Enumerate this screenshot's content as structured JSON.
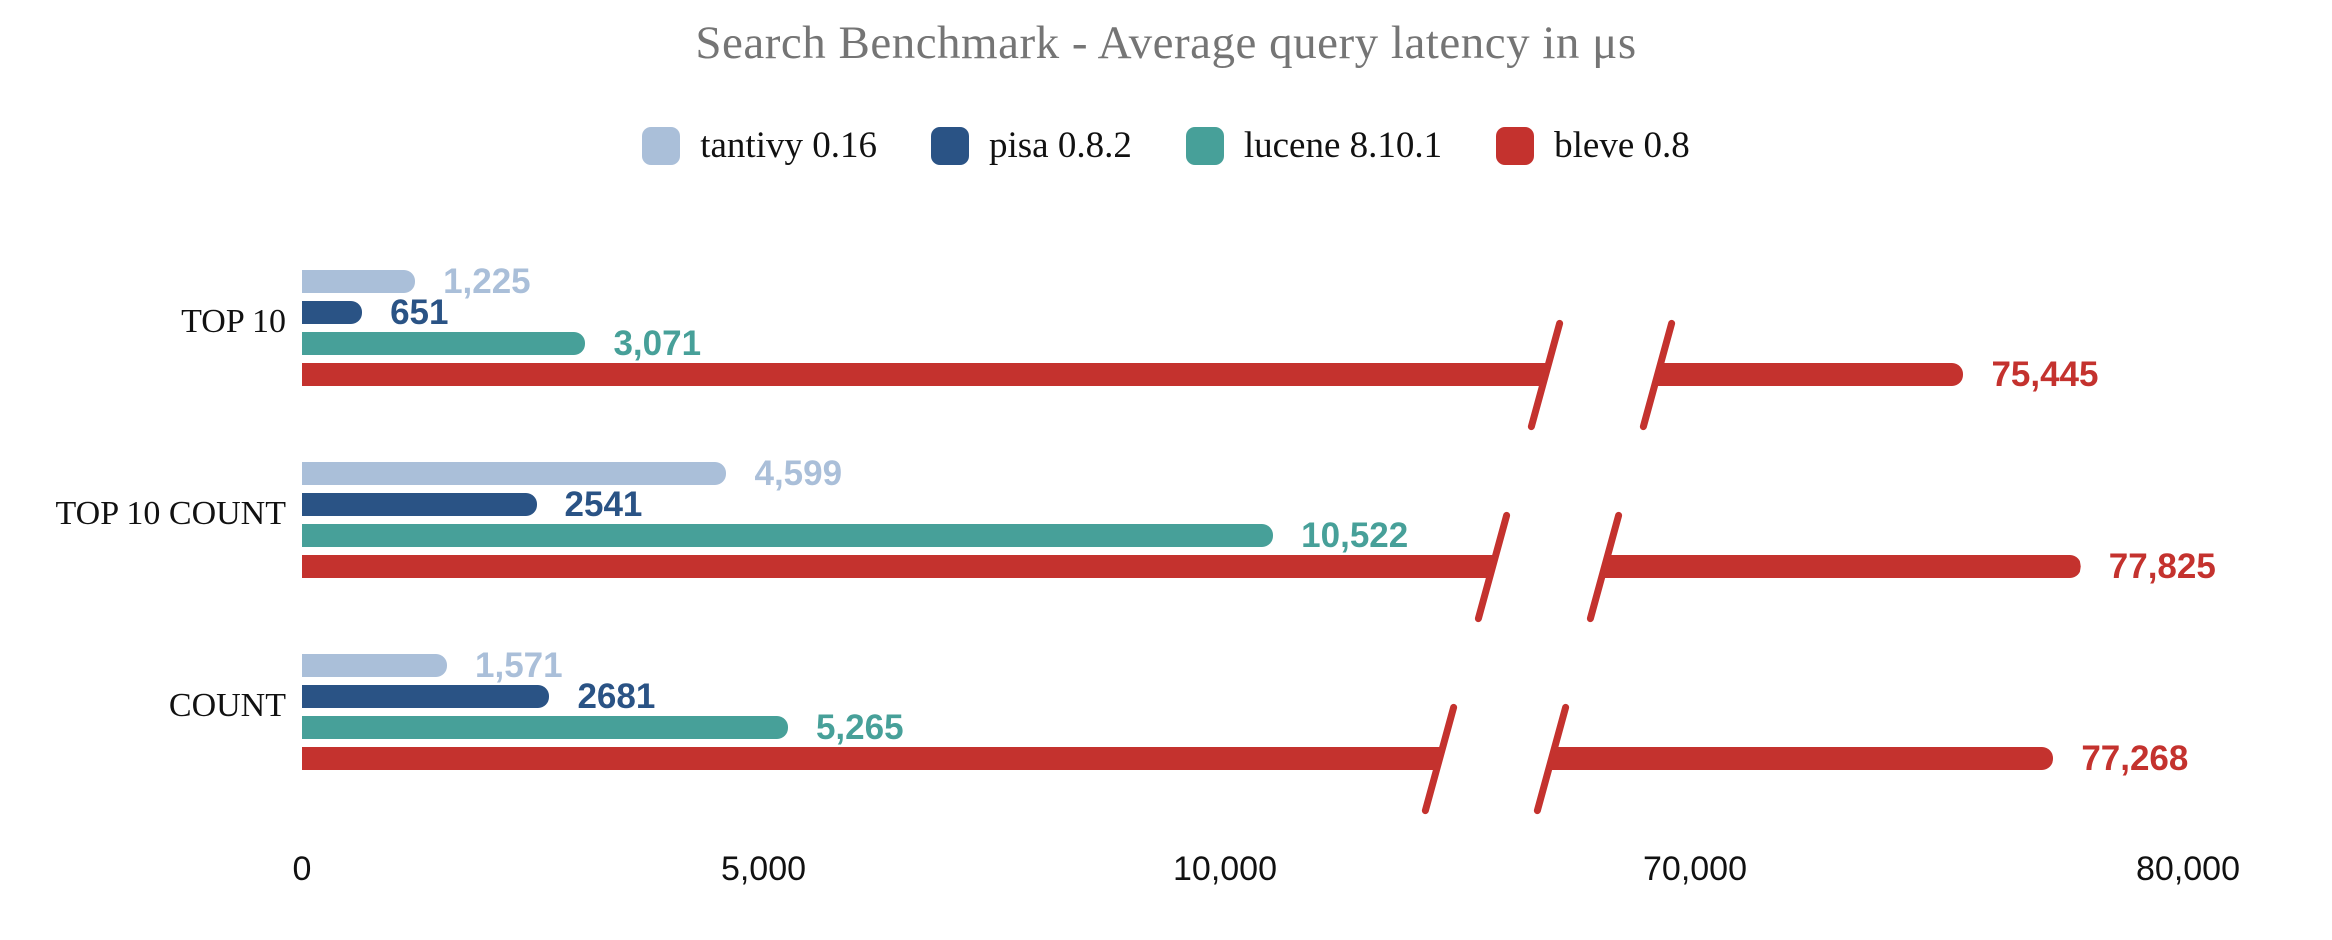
{
  "chart_data": {
    "type": "bar",
    "orientation": "horizontal",
    "title": "Search Benchmark - Average query latency in μs",
    "unit": "μs",
    "categories": [
      "TOP 10",
      "TOP 10 COUNT",
      "COUNT"
    ],
    "series": [
      {
        "name": "tantivy 0.16",
        "color": "#aabfd9",
        "values": [
          1225,
          4599,
          1571
        ],
        "value_labels": [
          "1,225",
          "4,599",
          "1,571"
        ]
      },
      {
        "name": "pisa 0.8.2",
        "color": "#2a5385",
        "values": [
          651,
          2541,
          2681
        ],
        "value_labels": [
          "651",
          "2541",
          "2681"
        ]
      },
      {
        "name": "lucene 8.10.1",
        "color": "#47a099",
        "values": [
          3071,
          10522,
          5265
        ],
        "value_labels": [
          "3,071",
          "10,522",
          "5,265"
        ]
      },
      {
        "name": "bleve 0.8",
        "color": "#c4322e",
        "values": [
          75445,
          77825,
          77268
        ],
        "value_labels": [
          "75,445",
          "77,825",
          "77,268"
        ]
      }
    ],
    "x_axis": {
      "ticks": [
        {
          "value": 0,
          "label": "0"
        },
        {
          "value": 5000,
          "label": "5,000"
        },
        {
          "value": 10000,
          "label": "10,000"
        },
        {
          "value": 70000,
          "label": "70,000"
        },
        {
          "value": 80000,
          "label": "80,000"
        }
      ],
      "axis_break": {
        "left_segment_range": [
          0,
          13000
        ],
        "right_segment_range": [
          70000,
          80000
        ],
        "break_marks": "red diagonal slashes on bleve bars"
      }
    },
    "legend_position": "top",
    "grid": false,
    "title_color": "#757575",
    "label_text_color": "#111111"
  }
}
